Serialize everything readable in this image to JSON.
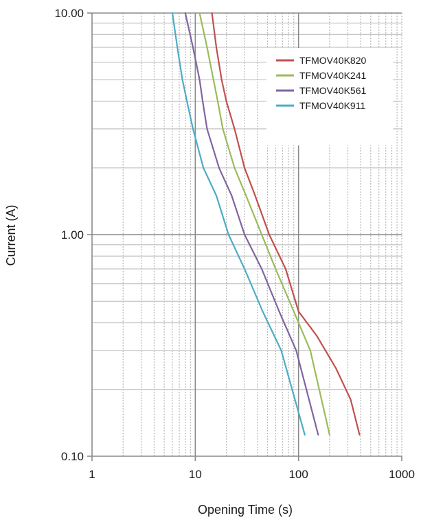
{
  "chart_data": {
    "type": "line",
    "title": "",
    "xlabel": "Opening Time (s)",
    "ylabel": "Current (A)",
    "x_scale": "log",
    "y_scale": "log",
    "xlim": [
      1,
      1000
    ],
    "ylim": [
      0.1,
      10
    ],
    "x_ticks": [
      "1",
      "10",
      "100",
      "1000"
    ],
    "y_ticks": [
      "0.10",
      "1.00",
      "10.00"
    ],
    "grid": true,
    "legend_position": "top-right",
    "series": [
      {
        "name": "TFMOV40K820",
        "color": "#c0504d",
        "points": [
          [
            14.5,
            10
          ],
          [
            16,
            7
          ],
          [
            18,
            5
          ],
          [
            20,
            4
          ],
          [
            24,
            3
          ],
          [
            30,
            2
          ],
          [
            38,
            1.5
          ],
          [
            52,
            1
          ],
          [
            75,
            0.7
          ],
          [
            100,
            0.45
          ],
          [
            150,
            0.35
          ],
          [
            230,
            0.25
          ],
          [
            320,
            0.18
          ],
          [
            390,
            0.125
          ]
        ]
      },
      {
        "name": "TFMOV40K241",
        "color": "#9bbb59",
        "points": [
          [
            11,
            10
          ],
          [
            13,
            7
          ],
          [
            15,
            5
          ],
          [
            16.5,
            4
          ],
          [
            18.5,
            3
          ],
          [
            24,
            2
          ],
          [
            31,
            1.5
          ],
          [
            44,
            1
          ],
          [
            60,
            0.7
          ],
          [
            90,
            0.45
          ],
          [
            130,
            0.3
          ],
          [
            200,
            0.125
          ]
        ]
      },
      {
        "name": "TFMOV40K561",
        "color": "#8064a2",
        "points": [
          [
            8,
            10
          ],
          [
            9.5,
            7
          ],
          [
            11,
            5
          ],
          [
            11.8,
            4
          ],
          [
            13,
            3
          ],
          [
            17,
            2
          ],
          [
            22.5,
            1.5
          ],
          [
            30,
            1
          ],
          [
            44,
            0.7
          ],
          [
            65,
            0.45
          ],
          [
            95,
            0.3
          ],
          [
            155,
            0.125
          ]
        ]
      },
      {
        "name": "TFMOV40K911",
        "color": "#4bacc6",
        "points": [
          [
            6,
            10
          ],
          [
            6.7,
            7
          ],
          [
            7.5,
            5
          ],
          [
            8.3,
            4
          ],
          [
            9.5,
            3
          ],
          [
            12,
            2
          ],
          [
            16,
            1.5
          ],
          [
            21,
            1
          ],
          [
            30,
            0.7
          ],
          [
            45,
            0.45
          ],
          [
            68,
            0.3
          ],
          [
            115,
            0.125
          ]
        ]
      }
    ]
  }
}
